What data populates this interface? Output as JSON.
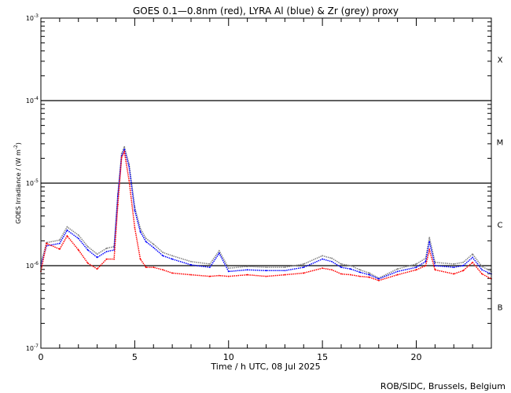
{
  "chart_data": {
    "type": "line",
    "title": "GOES 0.1—0.8nm (red), LYRA Al (blue) & Zr (grey) proxy",
    "xlabel": "Time / h UTC, 08 Jul 2025",
    "ylabel": "GOES Irradiance / (W m",
    "ylabel_sup": "-2",
    "ylabel_close": ")",
    "xlim": [
      0,
      24
    ],
    "ylim_log10": [
      -7,
      -3
    ],
    "yscale": "log",
    "x_ticks": [
      {
        "value": 0,
        "label": "0"
      },
      {
        "value": 5,
        "label": "5"
      },
      {
        "value": 10,
        "label": "10"
      },
      {
        "value": 15,
        "label": "15"
      },
      {
        "value": 20,
        "label": "20"
      }
    ],
    "y_ticks": [
      {
        "value": -3,
        "base": "10",
        "exp": "-3"
      },
      {
        "value": -4,
        "base": "10",
        "exp": "-4"
      },
      {
        "value": -5,
        "base": "10",
        "exp": "-5"
      },
      {
        "value": -6,
        "base": "10",
        "exp": "-6"
      },
      {
        "value": -7,
        "base": "10",
        "exp": "-7"
      }
    ],
    "reference_lines_log10": [
      -4,
      -5,
      -6
    ],
    "flare_classes": [
      {
        "label": "X",
        "center_log10": -3.5
      },
      {
        "label": "M",
        "center_log10": -4.5
      },
      {
        "label": "C",
        "center_log10": -5.5
      },
      {
        "label": "B",
        "center_log10": -6.5
      }
    ],
    "x": [
      0,
      0.3,
      1,
      1.4,
      2,
      2.5,
      3,
      3.5,
      3.9,
      4.1,
      4.3,
      4.45,
      4.7,
      5,
      5.3,
      5.6,
      6,
      6.5,
      7,
      8,
      9,
      9.5,
      10,
      11,
      12,
      13,
      14,
      15,
      15.5,
      16,
      16.5,
      17,
      17.5,
      18,
      19,
      20,
      20.5,
      20.7,
      21,
      22,
      22.5,
      23,
      23.5,
      24
    ],
    "series": [
      {
        "name": "LYRA Zr (grey) proxy",
        "color": "#808080",
        "unit": "log10 W m-2",
        "values": [
          -5.97,
          -5.72,
          -5.69,
          -5.53,
          -5.63,
          -5.77,
          -5.86,
          -5.79,
          -5.77,
          -5.13,
          -4.64,
          -4.56,
          -4.77,
          -5.29,
          -5.55,
          -5.67,
          -5.74,
          -5.84,
          -5.88,
          -5.95,
          -5.98,
          -5.82,
          -6.03,
          -6.01,
          -6.02,
          -6.02,
          -5.98,
          -5.88,
          -5.91,
          -5.98,
          -6.0,
          -6.05,
          -6.09,
          -6.15,
          -6.04,
          -5.98,
          -5.91,
          -5.66,
          -5.96,
          -5.98,
          -5.96,
          -5.86,
          -6.01,
          -6.07
        ]
      },
      {
        "name": "LYRA Al (blue) proxy",
        "color": "#0000ff",
        "unit": "log10 W m-2",
        "values": [
          -6.0,
          -5.76,
          -5.73,
          -5.57,
          -5.67,
          -5.81,
          -5.9,
          -5.83,
          -5.81,
          -5.16,
          -4.67,
          -4.59,
          -4.8,
          -5.33,
          -5.59,
          -5.71,
          -5.78,
          -5.88,
          -5.92,
          -5.99,
          -6.02,
          -5.85,
          -6.07,
          -6.05,
          -6.06,
          -6.06,
          -6.02,
          -5.92,
          -5.95,
          -6.02,
          -6.04,
          -6.08,
          -6.11,
          -6.16,
          -6.07,
          -6.02,
          -5.95,
          -5.71,
          -6.0,
          -6.02,
          -6.0,
          -5.9,
          -6.05,
          -6.1
        ]
      },
      {
        "name": "GOES 0.1-0.8nm (red)",
        "color": "#ff0000",
        "unit": "log10 W m-2",
        "values": [
          -6.07,
          -5.73,
          -5.8,
          -5.64,
          -5.81,
          -5.97,
          -6.04,
          -5.92,
          -5.92,
          -5.26,
          -4.69,
          -4.62,
          -4.97,
          -5.54,
          -5.92,
          -6.02,
          -6.02,
          -6.05,
          -6.09,
          -6.11,
          -6.13,
          -6.12,
          -6.13,
          -6.11,
          -6.13,
          -6.11,
          -6.09,
          -6.03,
          -6.05,
          -6.1,
          -6.11,
          -6.13,
          -6.14,
          -6.18,
          -6.11,
          -6.05,
          -6.0,
          -5.81,
          -6.05,
          -6.1,
          -6.06,
          -5.96,
          -6.1,
          -6.16
        ]
      }
    ],
    "grid": false,
    "legend": "none"
  },
  "credit": "ROB/SIDC, Brussels, Belgium"
}
